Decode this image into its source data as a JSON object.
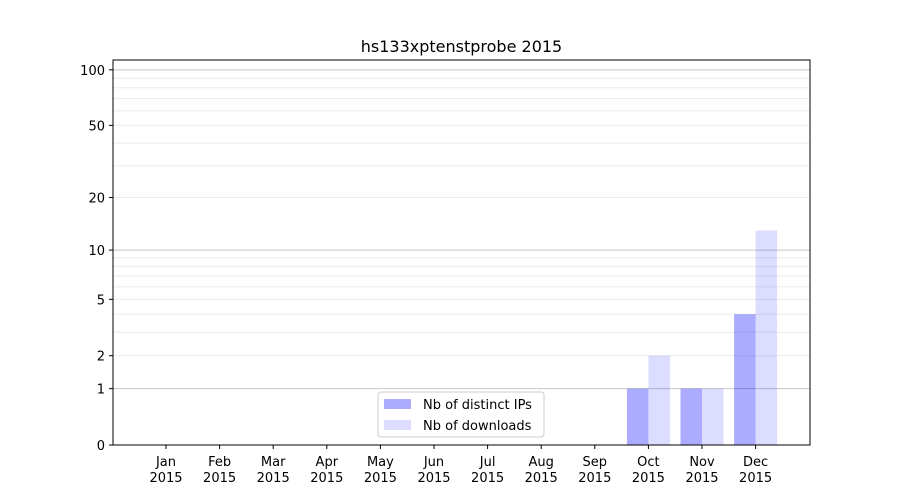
{
  "chart_data": {
    "type": "bar",
    "title": "hs133xptenstprobe 2015",
    "xlabel": "",
    "ylabel": "",
    "yscale": "log(1+y)",
    "ylim": [
      0,
      113
    ],
    "yticks": [
      0,
      1,
      2,
      5,
      10,
      20,
      50,
      100
    ],
    "ytick_labels": [
      "0",
      "1",
      "2",
      "5",
      "10",
      "20",
      "50",
      "100"
    ],
    "grid": true,
    "legend_position": "bottom-center",
    "categories": [
      "Jan\n2015",
      "Feb\n2015",
      "Mar\n2015",
      "Apr\n2015",
      "May\n2015",
      "Jun\n2015",
      "Jul\n2015",
      "Aug\n2015",
      "Sep\n2015",
      "Oct\n2015",
      "Nov\n2015",
      "Dec\n2015"
    ],
    "series": [
      {
        "name": "Nb of distinct IPs",
        "color": "#aaaaff",
        "values": [
          0,
          0,
          0,
          0,
          0,
          0,
          0,
          0,
          0,
          1,
          1,
          4
        ]
      },
      {
        "name": "Nb of downloads",
        "color": "#ddddff",
        "values": [
          0,
          0,
          0,
          0,
          0,
          0,
          0,
          0,
          0,
          2,
          1,
          13
        ]
      }
    ]
  }
}
